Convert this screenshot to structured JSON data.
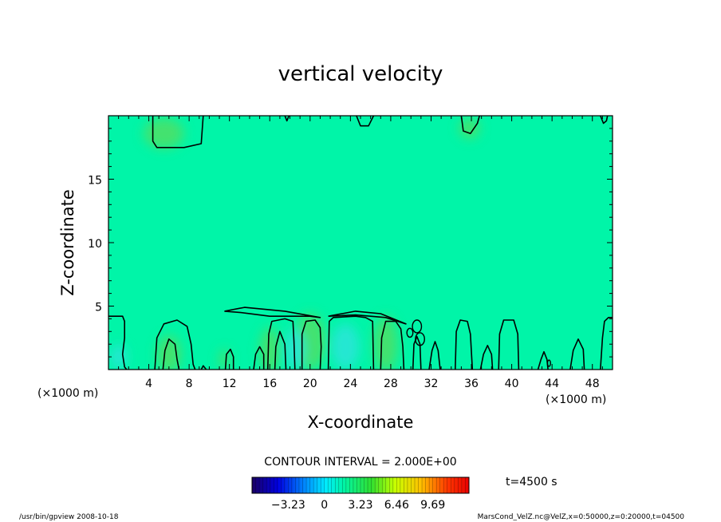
{
  "chart_data": {
    "type": "heatmap",
    "title": "vertical velocity",
    "xlabel": "X-coordinate",
    "ylabel": "Z-coordinate",
    "x_unit": "(×1000 m)",
    "x_unit_left": "(×1000 m)",
    "xlim": [
      0,
      50
    ],
    "ylim": [
      0,
      20
    ],
    "x_ticks": [
      4,
      8,
      12,
      16,
      20,
      24,
      28,
      32,
      36,
      40,
      44,
      48
    ],
    "y_ticks": [
      5,
      10,
      15
    ],
    "contour_interval": "CONTOUR INTERVAL = 2.000E+00",
    "time_label": "t=4500 s",
    "colorbar_ticks": [
      "−3.23",
      "0",
      "3.23",
      "6.46",
      "9.69"
    ],
    "colorbar_range": [
      -6.46,
      12.92
    ],
    "background_color": "#00f5a8",
    "colors": {
      "neutral": "#00f5a8",
      "positive": "#4ae068",
      "negative": "#28e6d6"
    },
    "positive_updrafts": [
      {
        "x": 6.0,
        "z": 1.2,
        "wx": 1.2,
        "wz": 1.5
      },
      {
        "x": 16.0,
        "z": 1.5,
        "wx": 1.0,
        "wz": 1.8
      },
      {
        "x": 20.0,
        "z": 2.2,
        "wx": 1.6,
        "wz": 2.2
      },
      {
        "x": 27.5,
        "z": 2.0,
        "wx": 1.2,
        "wz": 2.2
      },
      {
        "x": 11.5,
        "z": 0.8,
        "wx": 0.5,
        "wz": 0.8
      },
      {
        "x": 5.5,
        "z": 18.6,
        "wx": 2.0,
        "wz": 1.2
      },
      {
        "x": 35.8,
        "z": 19.0,
        "wx": 1.0,
        "wz": 0.8
      }
    ],
    "negative_downdrafts": [
      {
        "x": 18.5,
        "z": 1.6,
        "wx": 1.0,
        "wz": 1.6
      },
      {
        "x": 23.5,
        "z": 1.8,
        "wx": 1.4,
        "wz": 1.8
      },
      {
        "x": 1.0,
        "z": 1.0,
        "wx": 0.8,
        "wz": 1.0
      }
    ],
    "contours": [
      [
        [
          0,
          4.2
        ],
        [
          1.4,
          4.2
        ],
        [
          1.6,
          3.8
        ],
        [
          1.6,
          2.5
        ],
        [
          1.4,
          1.2
        ],
        [
          1.6,
          0.2
        ],
        [
          1.8,
          0
        ]
      ],
      [
        [
          4.6,
          0
        ],
        [
          4.8,
          2.5
        ],
        [
          5.5,
          3.6
        ],
        [
          6.8,
          3.9
        ],
        [
          7.8,
          3.4
        ],
        [
          8.2,
          2.0
        ],
        [
          8.4,
          0.4
        ],
        [
          8.6,
          0
        ]
      ],
      [
        [
          5.4,
          0
        ],
        [
          5.6,
          1.5
        ],
        [
          6.0,
          2.4
        ],
        [
          6.6,
          2.0
        ],
        [
          6.8,
          0.8
        ],
        [
          7.0,
          0
        ]
      ],
      [
        [
          9.2,
          0
        ],
        [
          9.4,
          0.3
        ],
        [
          9.7,
          0
        ]
      ],
      [
        [
          11.6,
          0
        ],
        [
          11.7,
          1.2
        ],
        [
          12.1,
          1.6
        ],
        [
          12.4,
          1.0
        ],
        [
          12.4,
          0
        ]
      ],
      [
        [
          14.4,
          0
        ],
        [
          14.6,
          1.2
        ],
        [
          15.0,
          1.8
        ],
        [
          15.4,
          1.2
        ],
        [
          15.4,
          0
        ]
      ],
      [
        [
          15.8,
          0
        ],
        [
          15.9,
          2.8
        ],
        [
          16.2,
          3.8
        ],
        [
          17.5,
          4.0
        ],
        [
          18.3,
          3.8
        ],
        [
          18.4,
          2.2
        ],
        [
          18.5,
          0
        ]
      ],
      [
        [
          16.5,
          0
        ],
        [
          16.6,
          1.8
        ],
        [
          17.0,
          3.0
        ],
        [
          17.5,
          2.0
        ],
        [
          17.6,
          0
        ]
      ],
      [
        [
          19.2,
          0
        ],
        [
          19.2,
          2.8
        ],
        [
          19.6,
          3.8
        ],
        [
          20.5,
          3.9
        ],
        [
          21.0,
          3.3
        ],
        [
          21.1,
          1.8
        ],
        [
          21.0,
          0
        ]
      ],
      [
        [
          21.8,
          0
        ],
        [
          21.9,
          3.8
        ],
        [
          22.3,
          4.1
        ],
        [
          24.5,
          4.2
        ],
        [
          25.5,
          4.1
        ],
        [
          26.2,
          3.8
        ],
        [
          26.3,
          0
        ]
      ],
      [
        [
          27.0,
          0
        ],
        [
          27.1,
          2.5
        ],
        [
          27.5,
          3.8
        ],
        [
          28.5,
          3.8
        ],
        [
          29.0,
          3.2
        ],
        [
          29.2,
          1.8
        ],
        [
          29.3,
          0
        ]
      ],
      [
        [
          30.2,
          0
        ],
        [
          30.3,
          2.0
        ],
        [
          30.6,
          2.6
        ],
        [
          30.9,
          2.0
        ],
        [
          31.0,
          0
        ]
      ],
      [
        [
          31.8,
          0
        ],
        [
          32.1,
          1.5
        ],
        [
          32.4,
          2.2
        ],
        [
          32.7,
          1.5
        ],
        [
          32.9,
          0
        ]
      ],
      [
        [
          34.4,
          0
        ],
        [
          34.5,
          3.0
        ],
        [
          34.9,
          3.9
        ],
        [
          35.6,
          3.8
        ],
        [
          35.9,
          2.8
        ],
        [
          36.1,
          0
        ]
      ],
      [
        [
          36.9,
          0
        ],
        [
          37.2,
          1.2
        ],
        [
          37.6,
          1.9
        ],
        [
          38.0,
          1.2
        ],
        [
          38.1,
          0
        ]
      ],
      [
        [
          38.7,
          0
        ],
        [
          38.8,
          2.8
        ],
        [
          39.2,
          3.9
        ],
        [
          40.2,
          3.9
        ],
        [
          40.6,
          2.8
        ],
        [
          40.7,
          0
        ]
      ],
      [
        [
          42.6,
          0
        ],
        [
          42.9,
          0.8
        ],
        [
          43.2,
          1.4
        ],
        [
          43.5,
          0.8
        ],
        [
          43.6,
          0
        ]
      ],
      [
        [
          45.8,
          0
        ],
        [
          46.1,
          1.5
        ],
        [
          46.6,
          2.4
        ],
        [
          47.1,
          1.6
        ],
        [
          47.2,
          0
        ]
      ],
      [
        [
          48.8,
          0
        ],
        [
          49.0,
          2.5
        ],
        [
          49.2,
          3.8
        ],
        [
          49.6,
          4.1
        ],
        [
          50,
          4.1
        ]
      ],
      [
        [
          11.5,
          4.6
        ],
        [
          13.5,
          4.9
        ],
        [
          17.5,
          4.6
        ],
        [
          21.0,
          4.1
        ],
        [
          20.0,
          4.2
        ],
        [
          16.0,
          4.2
        ],
        [
          13.0,
          4.5
        ],
        [
          11.5,
          4.6
        ]
      ],
      [
        [
          21.8,
          4.2
        ],
        [
          24.5,
          4.6
        ],
        [
          27.0,
          4.4
        ],
        [
          29.5,
          3.6
        ],
        [
          27.5,
          4.1
        ],
        [
          24.5,
          4.3
        ],
        [
          21.8,
          4.2
        ]
      ],
      [
        [
          4.4,
          20
        ],
        [
          4.4,
          18.0
        ],
        [
          4.8,
          17.5
        ],
        [
          7.5,
          17.5
        ],
        [
          9.2,
          17.8
        ],
        [
          9.4,
          20
        ]
      ],
      [
        [
          17.5,
          20
        ],
        [
          17.7,
          19.6
        ],
        [
          17.9,
          20
        ]
      ],
      [
        [
          24.6,
          20
        ],
        [
          25.0,
          19.2
        ],
        [
          25.8,
          19.2
        ],
        [
          26.3,
          20
        ]
      ],
      [
        [
          35.0,
          20
        ],
        [
          35.2,
          18.8
        ],
        [
          35.9,
          18.6
        ],
        [
          36.6,
          19.4
        ],
        [
          36.8,
          20
        ]
      ],
      [
        [
          48.8,
          20
        ],
        [
          49.1,
          19.4
        ],
        [
          49.4,
          19.6
        ],
        [
          49.5,
          20
        ]
      ]
    ],
    "contour_rings": [
      {
        "x": 30.6,
        "z": 3.4,
        "rx": 0.45,
        "rz": 0.5
      },
      {
        "x": 30.9,
        "z": 2.4,
        "rx": 0.45,
        "rz": 0.5
      },
      {
        "x": 29.9,
        "z": 2.9,
        "rx": 0.3,
        "rz": 0.35
      },
      {
        "x": 43.7,
        "z": 0.5,
        "rx": 0.15,
        "rz": 0.25
      }
    ]
  },
  "footer": {
    "left": "/usr/bin/gpview  2008-10-18",
    "right": "MarsCond_VelZ.nc@VelZ,x=0:50000,z=0:20000,t=04500"
  }
}
